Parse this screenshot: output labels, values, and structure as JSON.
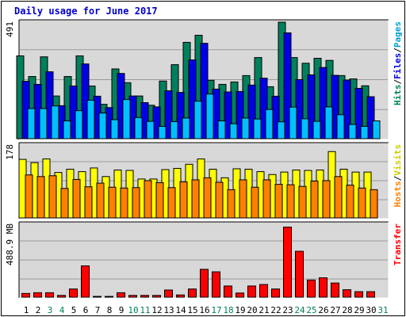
{
  "chart_data": {
    "title": "Daily usage for June 2017",
    "days": [
      "1",
      "2",
      "3",
      "4",
      "5",
      "6",
      "7",
      "8",
      "9",
      "10",
      "11",
      "12",
      "13",
      "14",
      "15",
      "16",
      "17",
      "18",
      "19",
      "20",
      "21",
      "22",
      "23",
      "24",
      "25",
      "26",
      "27",
      "28",
      "29",
      "30",
      "31"
    ],
    "weekend_days": [
      "3",
      "4",
      "10",
      "11",
      "17",
      "18",
      "24",
      "25",
      "31"
    ],
    "panels": [
      {
        "type": "bar",
        "ylabel": [
          "Hits",
          "/",
          "Files",
          "/",
          "Pages"
        ],
        "ymax_label": "491",
        "ylim": [
          0,
          491
        ],
        "series": [
          {
            "name": "Hits",
            "color": "#00805c",
            "values": [
              349,
              262,
              345,
              180,
              262,
              349,
              222,
              145,
              294,
              236,
              180,
              141,
              243,
              312,
              406,
              436,
              246,
              229,
              239,
              266,
              342,
              219,
              491,
              342,
              318,
              339,
              330,
              266,
              252,
              223
            ]
          },
          {
            "name": "Files",
            "color": "#0000e6",
            "values": [
              242,
              229,
              282,
              139,
              222,
              315,
              179,
              131,
              275,
              180,
              152,
              134,
              202,
              195,
              332,
              402,
              209,
              197,
              199,
              226,
              255,
              179,
              446,
              249,
              269,
              300,
              267,
              247,
              212,
              177
            ]
          },
          {
            "name": "Pages",
            "color": "#00c0ff",
            "values": [
              127,
              127,
              138,
              75,
              118,
              162,
              108,
              80,
              165,
              89,
              73,
              52,
              72,
              87,
              158,
              188,
              75,
              63,
              87,
              83,
              123,
              71,
              133,
              84,
              73,
              134,
              101,
              60,
              52,
              75
            ]
          }
        ]
      },
      {
        "type": "bar",
        "ylabel": [
          "Hosts",
          "/",
          "Visits"
        ],
        "ymax_label": "178",
        "ylim": [
          0,
          178
        ],
        "series": [
          {
            "name": "Visits",
            "color": "#ffff00",
            "values": [
              143,
              135,
              144,
              111,
              119,
              113,
              122,
              101,
              117,
              116,
              95,
              95,
              118,
              121,
              131,
              144,
              119,
              98,
              120,
              119,
              113,
              106,
              112,
              117,
              116,
              117,
              162,
              119,
              112,
              112
            ]
          },
          {
            "name": "Hosts",
            "color": "#ff8000",
            "values": [
              105,
              101,
              103,
              72,
              94,
              76,
              85,
              75,
              73,
              74,
              91,
              86,
              74,
              88,
              93,
              98,
              87,
              69,
              93,
              75,
              93,
              82,
              81,
              77,
              90,
              91,
              101,
              80,
              73,
              69
            ]
          }
        ]
      },
      {
        "type": "bar",
        "ylabel": [
          "Transfer"
        ],
        "ymax_label": "488.9 MB",
        "ylim": [
          0,
          488.9
        ],
        "series": [
          {
            "name": "Transfer",
            "color": "#ff0000",
            "values": [
              25,
              30,
              30,
              12,
              55,
              210,
              5,
              5,
              30,
              12,
              12,
              12,
              48,
              15,
              55,
              187,
              170,
              75,
              28,
              75,
              85,
              55,
              470,
              308,
              115,
              130,
              95,
              50,
              37,
              37
            ]
          }
        ]
      }
    ]
  }
}
